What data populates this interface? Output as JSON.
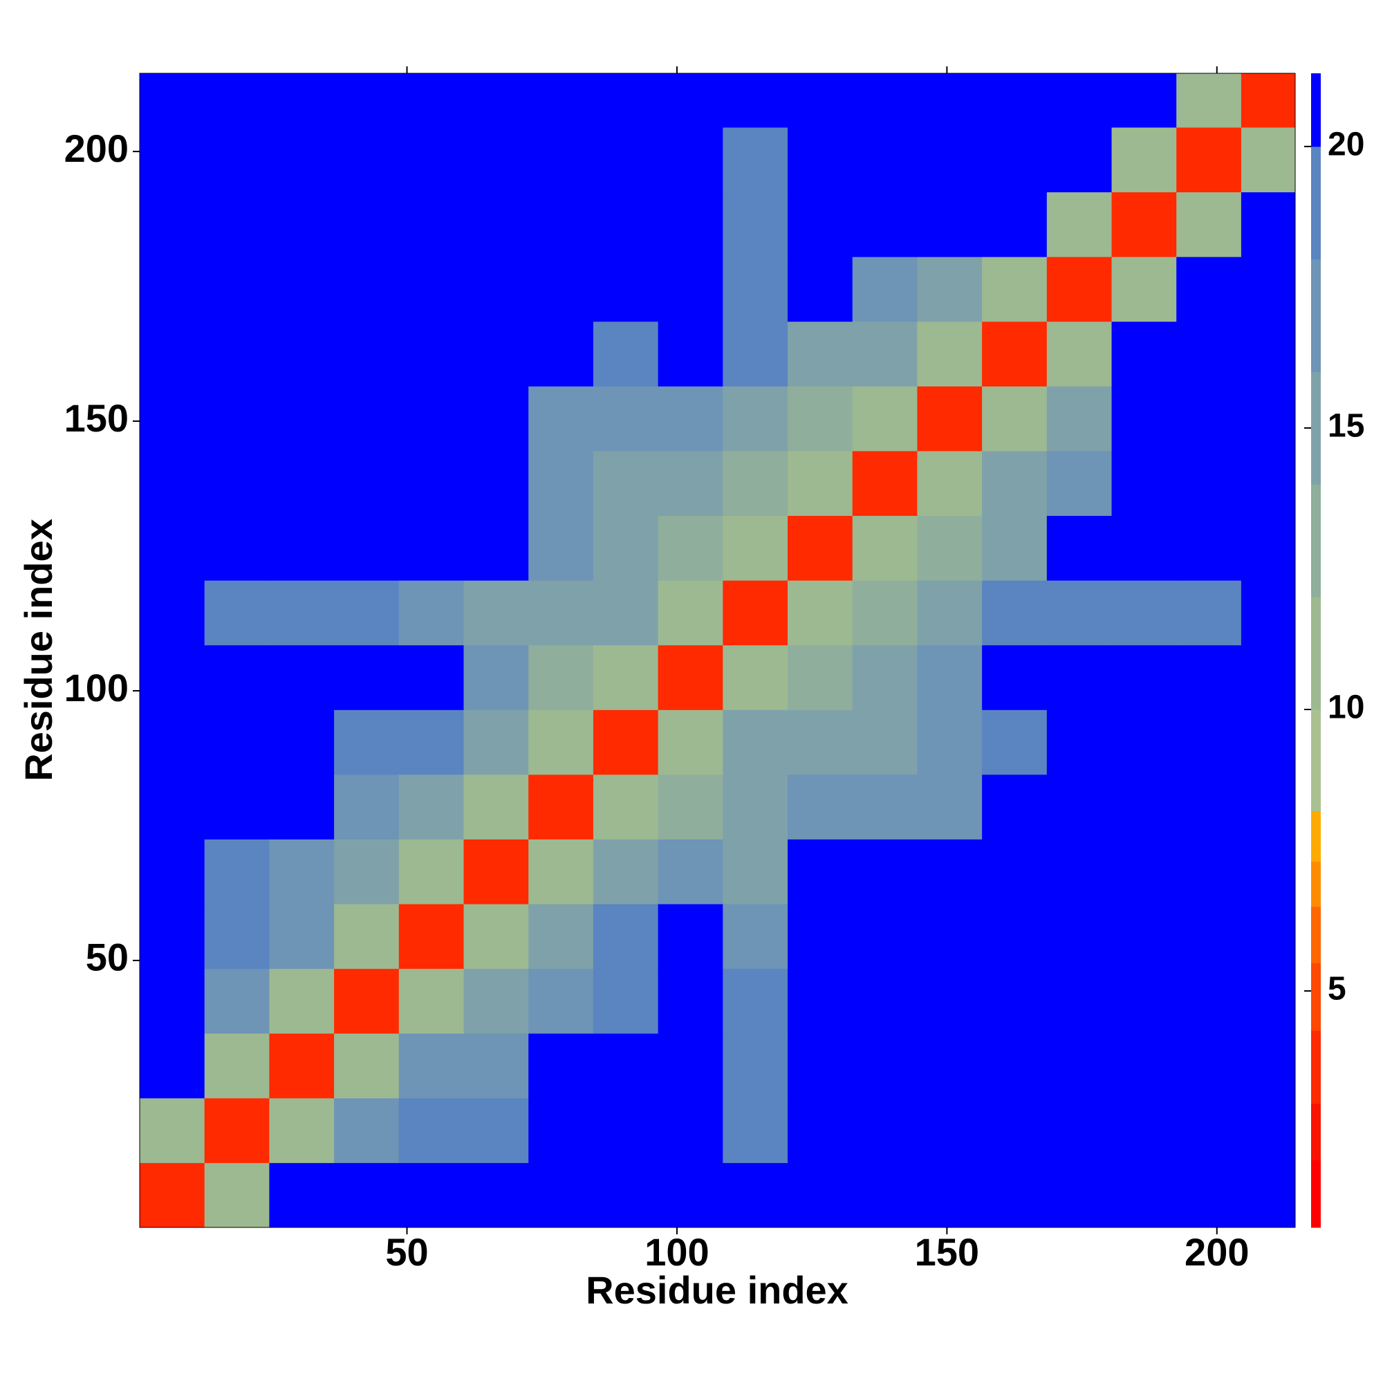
{
  "chart_data": {
    "type": "heatmap",
    "x_label": "Residue index",
    "y_label": "Residue index",
    "x_bins": [
      0.5,
      12.5,
      24.5,
      36.5,
      48.5,
      60.5,
      72.5,
      84.5,
      96.5,
      108.5,
      120.5,
      132.5,
      144.5,
      156.5,
      168.5,
      180.5,
      192.5,
      204.5,
      214.5
    ],
    "y_bins": [
      0.5,
      12.5,
      24.5,
      36.5,
      48.5,
      60.5,
      72.5,
      84.5,
      96.5,
      108.5,
      120.5,
      132.5,
      144.5,
      156.5,
      168.5,
      180.5,
      192.5,
      204.5,
      214.5
    ],
    "z": [
      [
        3,
        11,
        20,
        21,
        21,
        21,
        21,
        21,
        21,
        20,
        21,
        21,
        21,
        21,
        21,
        21,
        21,
        21
      ],
      [
        11,
        3,
        11,
        17,
        19,
        18,
        21,
        21,
        21,
        19,
        21,
        21,
        21,
        21,
        21,
        21,
        21,
        21
      ],
      [
        20,
        11,
        3,
        11,
        16,
        17,
        21,
        21,
        21,
        19,
        21,
        21,
        21,
        21,
        21,
        21,
        21,
        21
      ],
      [
        21,
        17,
        11,
        3,
        11,
        14,
        17,
        19,
        21,
        18,
        21,
        21,
        21,
        21,
        21,
        21,
        21,
        21
      ],
      [
        21,
        19,
        16,
        11,
        3,
        11,
        14,
        19,
        21,
        17,
        21,
        21,
        21,
        21,
        21,
        21,
        21,
        21
      ],
      [
        21,
        18,
        17,
        14,
        11,
        3,
        11,
        15,
        17,
        15,
        21,
        21,
        21,
        21,
        21,
        21,
        21,
        21
      ],
      [
        21,
        21,
        21,
        17,
        14,
        11,
        3,
        11,
        13,
        14,
        17,
        17,
        16,
        21,
        21,
        21,
        21,
        21
      ],
      [
        21,
        21,
        21,
        19,
        19,
        15,
        11,
        3,
        11,
        14,
        15,
        15,
        17,
        18,
        21,
        21,
        21,
        21
      ],
      [
        21,
        21,
        21,
        21,
        21,
        17,
        13,
        11,
        3,
        11,
        13,
        15,
        16,
        21,
        21,
        21,
        21,
        21
      ],
      [
        20,
        19,
        19,
        18,
        17,
        15,
        14,
        14,
        11,
        3,
        11,
        12,
        15,
        18,
        19,
        19,
        19,
        21
      ],
      [
        21,
        21,
        21,
        21,
        21,
        21,
        17,
        15,
        13,
        11,
        3,
        11,
        12,
        14,
        21,
        21,
        21,
        21
      ],
      [
        21,
        21,
        21,
        21,
        21,
        21,
        17,
        15,
        15,
        12,
        11,
        3,
        11,
        14,
        17,
        21,
        21,
        21
      ],
      [
        21,
        21,
        21,
        21,
        21,
        21,
        16,
        17,
        16,
        15,
        12,
        11,
        3,
        11,
        15,
        21,
        21,
        21
      ],
      [
        21,
        21,
        21,
        21,
        21,
        21,
        21,
        18,
        21,
        18,
        14,
        14,
        11,
        3,
        11,
        20,
        21,
        21
      ],
      [
        21,
        21,
        21,
        21,
        21,
        21,
        21,
        21,
        21,
        19,
        21,
        17,
        15,
        11,
        3,
        11,
        21,
        21
      ],
      [
        21,
        21,
        21,
        21,
        21,
        21,
        21,
        21,
        21,
        19,
        21,
        21,
        21,
        20,
        11,
        3,
        11,
        21
      ],
      [
        21,
        21,
        21,
        21,
        21,
        21,
        21,
        21,
        21,
        19,
        21,
        21,
        21,
        21,
        21,
        11,
        3,
        11
      ],
      [
        21,
        21,
        21,
        21,
        21,
        21,
        21,
        21,
        21,
        21,
        21,
        21,
        21,
        21,
        21,
        21,
        11,
        3
      ]
    ],
    "xlim": [
      0.5,
      214.5
    ],
    "ylim": [
      0.5,
      214.5
    ],
    "xticks": [
      50,
      100,
      150,
      200
    ],
    "yticks": [
      50,
      100,
      150,
      200
    ],
    "levels": [
      0.8,
      2,
      3,
      4.3,
      5.5,
      6.5,
      7.3,
      8.2,
      10,
      12,
      14,
      16,
      18,
      20,
      21.3
    ],
    "colors": [
      "#ff0000",
      "#f81400",
      "#ff2a00",
      "#ff4800",
      "#ff6600",
      "#ff8c00",
      "#ffaa00",
      "#a9c191",
      "#9db991",
      "#8fae9c",
      "#7fa2aa",
      "#6e94b6",
      "#5a85c1",
      "#0000ff"
    ],
    "colorbar_ticks": [
      5,
      10,
      15,
      20
    ]
  }
}
